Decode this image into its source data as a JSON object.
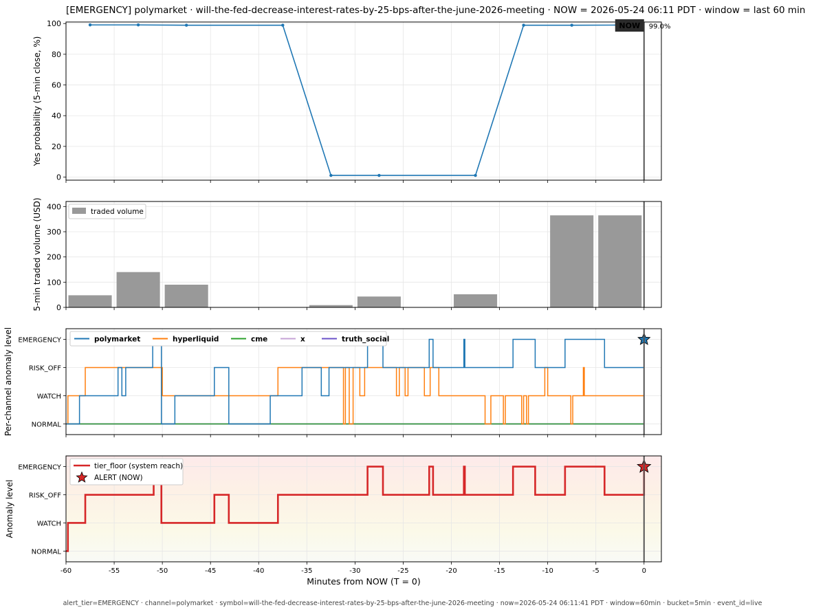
{
  "title": "[EMERGENCY] polymarket · will-the-fed-decrease-interest-rates-by-25-bps-after-the-june-2026-meeting  ·  NOW = 2026-05-24 06:11 PDT  ·  window = last 60 min",
  "footer": "alert_tier=EMERGENCY  ·  channel=polymarket  ·  symbol=will-the-fed-decrease-interest-rates-by-25-bps-after-the-june-2026-meeting  ·  now=2026-05-24 06:11:41 PDT  ·  window=60min  ·  bucket=5min  ·  event_id=live",
  "now_badge": "NOW",
  "last_value_label": "99.0%",
  "colors": {
    "prob": "#1f77b4",
    "volume": "#999999",
    "polymarket": "#1f77b4",
    "hyperliquid": "#ff7f0e",
    "cme": "#2ca02c",
    "x": "#c5a3d6",
    "truth_social": "#6a51c9",
    "tier": "#d62728",
    "now_line": "#555555"
  },
  "chart_data": [
    {
      "type": "line",
      "name": "probability-panel",
      "ylabel": "Yes probability (5-min close, %)",
      "xlim": [
        -60,
        1.8
      ],
      "ylim": [
        -2,
        101
      ],
      "yticks": [
        0,
        20,
        40,
        60,
        80,
        100
      ],
      "grid": true,
      "x": [
        -57.5,
        -52.5,
        -47.5,
        -37.5,
        -32.5,
        -27.5,
        -17.5,
        -12.5,
        -7.5,
        -2.5
      ],
      "values": [
        99.1,
        99.1,
        98.9,
        98.9,
        1.1,
        1.1,
        1.1,
        98.9,
        98.9,
        99.0
      ]
    },
    {
      "type": "bar",
      "name": "volume-panel",
      "ylabel": "5-min traded volume (USD)",
      "legend": [
        "traded volume"
      ],
      "legend_position": "top-left",
      "xlim": [
        -60,
        1.8
      ],
      "ylim": [
        0,
        420
      ],
      "yticks": [
        0,
        100,
        200,
        300,
        400
      ],
      "grid": true,
      "x": [
        -57.5,
        -52.5,
        -47.5,
        -42.5,
        -37.5,
        -32.5,
        -27.5,
        -22.5,
        -17.5,
        -12.5,
        -7.5,
        -2.5
      ],
      "values": [
        48,
        140,
        90,
        0,
        0,
        9,
        43,
        0,
        52,
        0,
        365,
        365
      ]
    },
    {
      "type": "line",
      "name": "channel-panel",
      "ylabel": "Per-channel anomaly level",
      "xlim": [
        -60,
        1.8
      ],
      "levels": [
        "NORMAL",
        "WATCH",
        "RISK_OFF",
        "EMERGENCY"
      ],
      "legend_position": "top-left",
      "grid": true,
      "series": [
        {
          "name": "polymarket",
          "steps": [
            [
              -60,
              0
            ],
            [
              -58.6,
              0
            ],
            [
              -58.6,
              1
            ],
            [
              -54.6,
              1
            ],
            [
              -54.6,
              2
            ],
            [
              -54.2,
              2
            ],
            [
              -54.2,
              1
            ],
            [
              -53.8,
              1
            ],
            [
              -53.8,
              2
            ],
            [
              -51,
              2
            ],
            [
              -51,
              3
            ],
            [
              -50.1,
              3
            ],
            [
              -50.1,
              0
            ],
            [
              -48.7,
              0
            ],
            [
              -48.7,
              1
            ],
            [
              -44.6,
              1
            ],
            [
              -44.6,
              2
            ],
            [
              -43.1,
              2
            ],
            [
              -43.1,
              0
            ],
            [
              -38.8,
              0
            ],
            [
              -38.8,
              1
            ],
            [
              -35.5,
              1
            ],
            [
              -35.5,
              2
            ],
            [
              -33.5,
              2
            ],
            [
              -33.5,
              1
            ],
            [
              -32.7,
              1
            ],
            [
              -32.7,
              2
            ],
            [
              -28.7,
              2
            ],
            [
              -28.7,
              3
            ],
            [
              -27.1,
              3
            ],
            [
              -27.1,
              2
            ],
            [
              -22.3,
              2
            ],
            [
              -22.3,
              3
            ],
            [
              -21.9,
              3
            ],
            [
              -21.9,
              2
            ],
            [
              -18.7,
              2
            ],
            [
              -18.7,
              3
            ],
            [
              -18.6,
              3
            ],
            [
              -18.6,
              2
            ],
            [
              -13.6,
              2
            ],
            [
              -13.6,
              3
            ],
            [
              -11.3,
              3
            ],
            [
              -11.3,
              2
            ],
            [
              -8.2,
              2
            ],
            [
              -8.2,
              3
            ],
            [
              -4.1,
              3
            ],
            [
              -4.1,
              2
            ],
            [
              0,
              2
            ],
            [
              0,
              3
            ]
          ]
        },
        {
          "name": "hyperliquid",
          "steps": [
            [
              -60,
              0
            ],
            [
              -59.8,
              0
            ],
            [
              -59.8,
              1
            ],
            [
              -58,
              1
            ],
            [
              -58,
              2
            ],
            [
              -50,
              2
            ],
            [
              -50,
              1
            ],
            [
              -38,
              1
            ],
            [
              -38,
              2
            ],
            [
              -31.2,
              2
            ],
            [
              -31.2,
              0
            ],
            [
              -31,
              0
            ],
            [
              -31,
              2
            ],
            [
              -30.6,
              2
            ],
            [
              -30.6,
              0
            ],
            [
              -30.2,
              0
            ],
            [
              -30.2,
              2
            ],
            [
              -29.5,
              2
            ],
            [
              -29.5,
              1
            ],
            [
              -29,
              1
            ],
            [
              -29,
              2
            ],
            [
              -25.7,
              2
            ],
            [
              -25.7,
              1
            ],
            [
              -25.4,
              1
            ],
            [
              -25.4,
              2
            ],
            [
              -24.8,
              2
            ],
            [
              -24.8,
              1
            ],
            [
              -24.5,
              1
            ],
            [
              -24.5,
              2
            ],
            [
              -22.8,
              2
            ],
            [
              -22.8,
              1
            ],
            [
              -22.2,
              1
            ],
            [
              -22.2,
              2
            ],
            [
              -21.3,
              2
            ],
            [
              -21.3,
              1
            ],
            [
              -16.5,
              1
            ],
            [
              -16.5,
              0
            ],
            [
              -15.9,
              0
            ],
            [
              -15.9,
              1
            ],
            [
              -14.6,
              1
            ],
            [
              -14.6,
              0
            ],
            [
              -14.4,
              0
            ],
            [
              -14.4,
              1
            ],
            [
              -12.7,
              1
            ],
            [
              -12.7,
              0
            ],
            [
              -12.5,
              0
            ],
            [
              -12.5,
              1
            ],
            [
              -12.2,
              1
            ],
            [
              -12.2,
              0
            ],
            [
              -12,
              0
            ],
            [
              -12,
              1
            ],
            [
              -10.3,
              1
            ],
            [
              -10.3,
              2
            ],
            [
              -10,
              2
            ],
            [
              -10,
              1
            ],
            [
              -7.6,
              1
            ],
            [
              -7.6,
              0
            ],
            [
              -7.4,
              0
            ],
            [
              -7.4,
              1
            ],
            [
              -6.3,
              1
            ],
            [
              -6.3,
              2
            ],
            [
              -6.2,
              2
            ],
            [
              -6.2,
              1
            ],
            [
              0,
              1
            ]
          ]
        },
        {
          "name": "cme",
          "steps": [
            [
              -60,
              0
            ],
            [
              0,
              0
            ]
          ]
        },
        {
          "name": "x",
          "steps": [
            [
              -60,
              0
            ],
            [
              0,
              0
            ]
          ]
        },
        {
          "name": "truth_social",
          "steps": [
            [
              -60,
              0
            ],
            [
              0,
              0
            ]
          ]
        }
      ],
      "marker": {
        "x": 0,
        "level": 3,
        "shape": "star"
      }
    },
    {
      "type": "line",
      "name": "tier-panel",
      "xlabel": "Minutes from NOW (T = 0)",
      "ylabel": "Anomaly level",
      "xlim": [
        -60,
        1.8
      ],
      "xticks": [
        -60,
        -55,
        -50,
        -45,
        -40,
        -35,
        -30,
        -25,
        -20,
        -15,
        -10,
        -5,
        0
      ],
      "levels": [
        "NORMAL",
        "WATCH",
        "RISK_OFF",
        "EMERGENCY"
      ],
      "legend": [
        "tier_floor (system reach)",
        "ALERT (NOW)"
      ],
      "legend_position": "top-left",
      "grid": true,
      "series": [
        {
          "name": "tier_floor (system reach)",
          "steps": [
            [
              -60,
              0
            ],
            [
              -59.8,
              0
            ],
            [
              -59.8,
              1
            ],
            [
              -58,
              1
            ],
            [
              -58,
              2
            ],
            [
              -50.9,
              2
            ],
            [
              -50.9,
              3
            ],
            [
              -50.1,
              3
            ],
            [
              -50.1,
              1
            ],
            [
              -44.6,
              1
            ],
            [
              -44.6,
              2
            ],
            [
              -43.1,
              2
            ],
            [
              -43.1,
              1
            ],
            [
              -38,
              1
            ],
            [
              -38,
              2
            ],
            [
              -28.7,
              2
            ],
            [
              -28.7,
              3
            ],
            [
              -27.1,
              3
            ],
            [
              -27.1,
              2
            ],
            [
              -22.3,
              2
            ],
            [
              -22.3,
              3
            ],
            [
              -21.9,
              3
            ],
            [
              -21.9,
              2
            ],
            [
              -18.7,
              2
            ],
            [
              -18.7,
              3
            ],
            [
              -18.6,
              3
            ],
            [
              -18.6,
              2
            ],
            [
              -13.6,
              2
            ],
            [
              -13.6,
              3
            ],
            [
              -11.3,
              3
            ],
            [
              -11.3,
              2
            ],
            [
              -8.2,
              2
            ],
            [
              -8.2,
              3
            ],
            [
              -4.1,
              3
            ],
            [
              -4.1,
              2
            ],
            [
              0,
              2
            ],
            [
              0,
              3
            ]
          ]
        }
      ],
      "marker": {
        "x": 0,
        "level": 3,
        "shape": "star",
        "name": "ALERT (NOW)"
      }
    }
  ]
}
